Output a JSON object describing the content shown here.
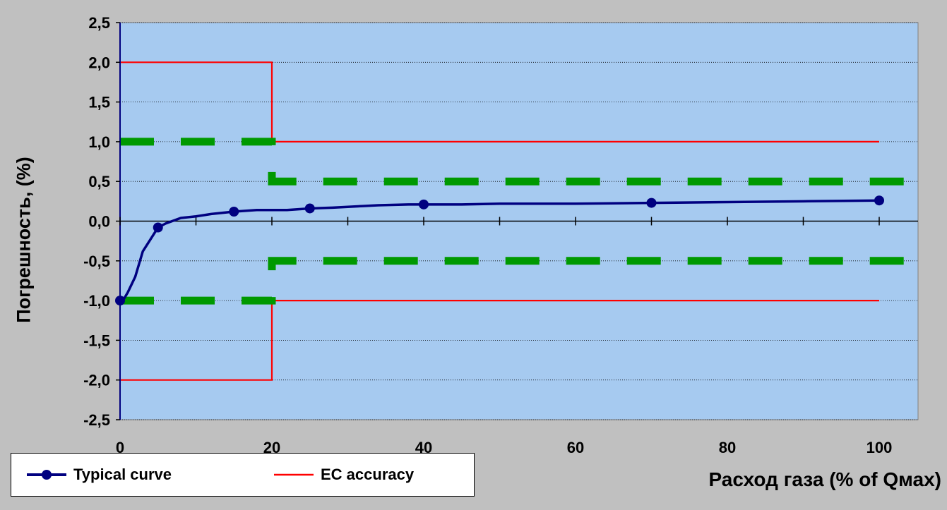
{
  "chart_data": {
    "type": "line",
    "xlabel": "Расход газа (% of Qмах)",
    "ylabel": "Погрешность, (%)",
    "xlim": [
      0,
      100
    ],
    "ylim": [
      -2.5,
      2.5
    ],
    "x_ticks": [
      "0",
      "20",
      "40",
      "60",
      "80",
      "100"
    ],
    "y_ticks": [
      "2,5",
      "2,0",
      "1,5",
      "1,0",
      "0,5",
      "0,0",
      "-0,5",
      "-1,0",
      "-1,5",
      "-2,0",
      "-2,5"
    ],
    "grid": true,
    "legend_position": "bottom-left",
    "colors": {
      "plot_bg": "#a6caf0",
      "outer_bg": "#c0c0c0",
      "typical": "#000080",
      "ec": "#ff0000",
      "green": "#009900"
    },
    "series": [
      {
        "name": "Typical curve",
        "x": [
          0,
          0.5,
          1,
          2,
          3,
          5,
          6,
          8,
          10,
          12,
          15,
          18,
          20,
          22,
          25,
          28,
          30,
          32,
          34,
          38,
          40,
          45,
          50,
          60,
          70,
          80,
          90,
          100
        ],
        "y": [
          -1.0,
          -0.98,
          -0.9,
          -0.7,
          -0.38,
          -0.08,
          -0.03,
          0.04,
          0.06,
          0.09,
          0.12,
          0.14,
          0.14,
          0.14,
          0.16,
          0.17,
          0.18,
          0.19,
          0.2,
          0.21,
          0.21,
          0.21,
          0.22,
          0.22,
          0.23,
          0.24,
          0.25,
          0.26
        ],
        "markers_x": [
          0,
          5,
          15,
          25,
          40,
          70,
          100
        ],
        "markers_y": [
          -1.0,
          -0.08,
          0.12,
          0.16,
          0.21,
          0.23,
          0.26
        ]
      },
      {
        "name": "EC accuracy",
        "upper": {
          "x": [
            0,
            20,
            20,
            100
          ],
          "y": [
            2.0,
            2.0,
            1.0,
            1.0
          ]
        },
        "lower": {
          "x": [
            0,
            20,
            20,
            100
          ],
          "y": [
            -2.0,
            -2.0,
            -1.0,
            -1.0
          ]
        }
      },
      {
        "upper": {
          "x": [
            0,
            20,
            20,
            105
          ],
          "y": [
            1.0,
            1.0,
            0.5,
            0.5
          ]
        },
        "lower": {
          "x": [
            0,
            20,
            20,
            105
          ],
          "y": [
            -1.0,
            -1.0,
            -0.5,
            -0.5
          ]
        }
      }
    ]
  }
}
